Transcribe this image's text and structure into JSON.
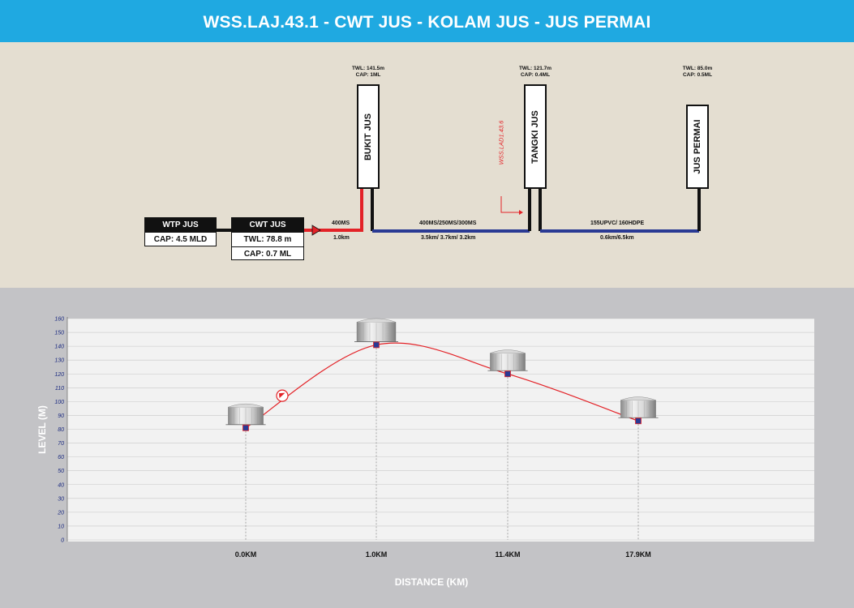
{
  "header": {
    "title": "WSS.LAJ.43.1 - CWT JUS - KOLAM JUS - JUS PERMAI"
  },
  "schematic": {
    "wtp": {
      "name": "WTP JUS",
      "cap": "CAP: 4.5 MLD"
    },
    "cwt": {
      "name": "CWT JUS",
      "twl": "TWL: 78.8 m",
      "cap": "CAP: 0.7 ML"
    },
    "tanks": [
      {
        "name": "BUKIT JUS",
        "twl": "TWL: 141.5m",
        "cap": "CAP: 1ML"
      },
      {
        "name": "TANGKI JUS",
        "twl": "TWL: 121.7m",
        "cap": "CAP: 0.4ML"
      },
      {
        "name": "JUS PERMAI",
        "twl": "TWL: 85.0m",
        "cap": "CAP: 0.5ML"
      }
    ],
    "pipes": [
      {
        "spec": "400MS",
        "length": "1.0km"
      },
      {
        "spec": "400MS/250MS/300MS",
        "length": "3.5km/ 3.7km/ 3.2km"
      },
      {
        "spec": "155UPVC/ 160HDPE",
        "length": "0.6km/6.5km"
      }
    ],
    "tag": "WSS.LAD1.43.6",
    "colors": {
      "pumped": "#e32227",
      "gravity": "#2a3a94"
    }
  },
  "chart_data": {
    "type": "line",
    "ylabel": "LEVEL (M)",
    "xlabel": "DISTANCE (KM)",
    "ylim": [
      0,
      160
    ],
    "yticks": [
      0,
      10,
      20,
      30,
      40,
      50,
      60,
      70,
      80,
      90,
      100,
      110,
      120,
      130,
      140,
      150,
      160
    ],
    "grid": true,
    "x": [
      "0.0KM",
      "1.0KM",
      "11.4KM",
      "17.9KM"
    ],
    "values": [
      81,
      141,
      120,
      86
    ],
    "pump_marker_after": "0.0KM",
    "line_color": "#e32227",
    "marker_color": "#2a3a94"
  }
}
